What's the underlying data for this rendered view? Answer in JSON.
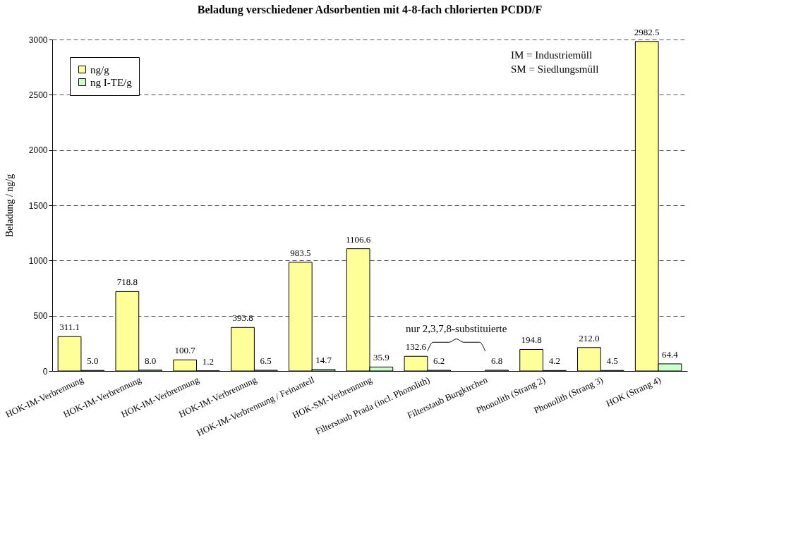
{
  "chart_data": {
    "type": "bar",
    "title": "Beladung verschiedener Adsorbentien mit 4-8-fach chlorierten PCDD/F",
    "ylabel": "Beladung  / ng/g",
    "categories": [
      "HOK-IM-Verbrennung",
      "HOK-IM-Verbrennung",
      "HOK-IM-Verbrennung",
      "HOK-IM-Verbrennung",
      "HOK-IM-Verbrennung / Feinanteil",
      "HOK-SM-Verbrennung",
      "Filterstaub Prada (incl. Phonolith)",
      "Filterstaub Burgkirchen",
      "Phonolith (Strang 2)",
      "Phonolith (Strang 3)",
      "HOK (Strang 4)"
    ],
    "series": [
      {
        "name": "ng/g",
        "color": "#ffff99",
        "values": [
          311.1,
          718.8,
          100.7,
          393.8,
          983.5,
          1106.6,
          132.6,
          null,
          194.8,
          212.0,
          2982.5
        ],
        "value_labels": [
          "311.1",
          "718.8",
          "100.7",
          "393.8",
          "983.5",
          "1106.6",
          "132.6",
          null,
          "194.8",
          "212.0",
          "2982.5"
        ]
      },
      {
        "name": "ng I-TE/g",
        "color": "#ccffcc",
        "values": [
          5.0,
          8.0,
          1.2,
          6.5,
          14.7,
          35.9,
          6.2,
          6.8,
          4.2,
          4.5,
          64.4
        ],
        "value_labels": [
          "5.0",
          "8.0",
          "1.2",
          "6.5",
          "14.7",
          "35.9",
          "6.2",
          "6.8",
          "4.2",
          "4.5",
          "64.4"
        ]
      }
    ],
    "ylim": [
      0,
      3000
    ],
    "yticks": [
      0,
      500,
      1000,
      1500,
      2000,
      2500,
      3000
    ],
    "grid": "y",
    "legend": "top left",
    "annotations": [
      "IM  = Industriemüll",
      "SM = Siedlungsmüll",
      "nur 2,3,7,8-substituierte"
    ]
  }
}
